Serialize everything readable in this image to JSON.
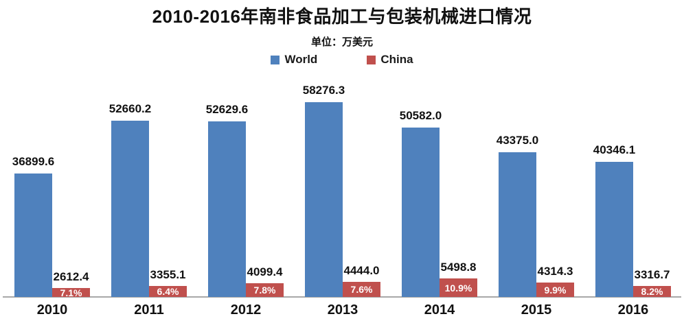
{
  "chart_data": {
    "type": "bar",
    "title": "2010-2016年南非食品加工与包装机械进口情况",
    "subtitle": "单位：万美元",
    "categories": [
      "2010",
      "2011",
      "2012",
      "2013",
      "2014",
      "2015",
      "2016"
    ],
    "series": [
      {
        "name": "World",
        "color": "#4f81bd",
        "values": [
          36899.6,
          52660.2,
          52629.6,
          58276.3,
          50582.0,
          43375.0,
          40346.1
        ]
      },
      {
        "name": "China",
        "color": "#c0504d",
        "values": [
          2612.4,
          3355.1,
          4099.4,
          4444.0,
          5498.8,
          4314.3,
          3316.7
        ],
        "share_labels": [
          "7.1%",
          "6.4%",
          "7.8%",
          "7.6%",
          "10.9%",
          "9.9%",
          "8.2%"
        ]
      }
    ],
    "legend_position": "top",
    "grid": false,
    "ylim": [
      0,
      60000
    ],
    "value_label_color": "#111111",
    "share_label_color": "#ffffff",
    "axis_line_color": "#a8a8a8",
    "background_color": "#ffffff"
  }
}
